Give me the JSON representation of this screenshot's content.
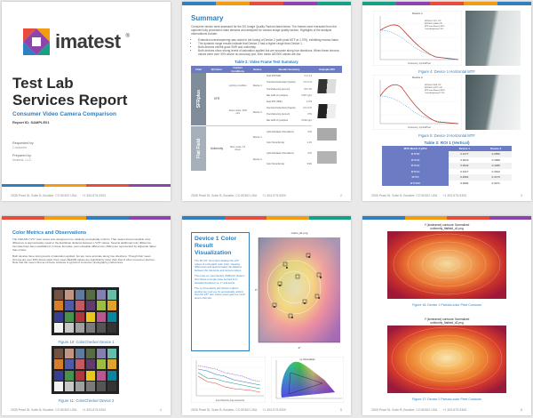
{
  "cover": {
    "logo_text": "imatest",
    "logo_mark": "®",
    "title_line1": "Test Lab",
    "title_line2": "Services Report",
    "subtitle": "Consumer Video Camera Comparison",
    "report_id": "Report ID: SAMPLE01",
    "requested_by_label": "Requested by:",
    "requested_by_value": "Customer",
    "prepared_by_label": "Prepared by:",
    "prepared_by_value": "Imatest, LLC"
  },
  "footer": {
    "address": "2535 Pearl St, Suite B, Boulder, CO 80302 USA",
    "phone": "+1 303-579-9300",
    "web": "www.imatest.com",
    "page_numbers": [
      "",
      "2",
      "3",
      "4",
      "5",
      "6"
    ]
  },
  "summary": {
    "heading": "Summary",
    "intro": "Consumer device were assessed for the EO Image Quality Factors listed below. The frames were extracted from the captured fully processed video streams and analyzed for various image quality factors. Highlights of the analysis observations include:",
    "bullets": [
      "Extended oversharpening was noted in the tuning of Device 2 (with peak MTF at 1.379), exhibiting excess halos.",
      "The dynamic range results indicate that Device 2 had a higher range than Device 1.",
      "Both devices exhibit good SNR and uniformity.",
      "Both devices show strong levels of saturation applied but are accurate along hue directions. When these chroma values were over 30% above an accuracy plot, then mean ΔE2000 values are low."
    ],
    "table_title": "Table 2: Video Frame Test Summary",
    "table_headers": [
      "Chart",
      "IQ Factor",
      "Capture Conditions",
      "Device",
      "Results Summary",
      "Example ROI"
    ],
    "group1_label": "SFRplus",
    "group1_factor": "SFR",
    "group1_cond1": "Lighting condition",
    "group1_cond2": "Same scale, SFR plus",
    "group2_label": "Flat Field",
    "group2_factor": "Uniformity",
    "group2_cond1": "Best mode, 1X Zoom",
    "devices": [
      "Device 1",
      "Device 2",
      "Device 1",
      "Device 2"
    ],
    "metric_rows": [
      [
        "Peak MTF/NMF",
        "0.4 / 0.4"
      ],
      [
        "Overshoot/undersharp (Nyquist)",
        "1.0 / 0.14"
      ],
      [
        "Oversharpening (percent)",
        "0% / 2%"
      ],
      [
        "Max width of cycle/pixel",
        "0.307 cy/px"
      ],
      [
        "Peak MTF (NMF)",
        "1.379"
      ],
      [
        "Overshoot/undershoot (Nyquist)",
        "0.9 / 0.27"
      ],
      [
        "Oversharpening (percent)",
        "27%"
      ],
      [
        "Max width of cycle/pixel",
        "0.319 cy/px"
      ]
    ],
    "flat_rows": [
      "Light Modulation (Normalized)",
      "Color Nonuniformity",
      "Light Modulation (Normalized)",
      "Color Nonuniformity"
    ],
    "flat_values": [
      "0.81",
      "1.1%",
      "0.87",
      "0.9%"
    ]
  },
  "mtf_page": {
    "fig1_caption": "Figure 4: Device 1 Horizontal MTF",
    "fig2_caption": "Figure 5: Device 2 Horizontal MTF",
    "table_title": "Table 3: ROI 1 (Vertical)",
    "table_headers": [
      "MTF Metric Cy/Pxl",
      "Device 1",
      "Device 2"
    ],
    "table_rows": [
      [
        "MTF50",
        "0.3177",
        "0.2559"
      ],
      [
        "MTF30",
        "0.3623",
        "0.3068"
      ],
      [
        "MTF20",
        "0.3942",
        "0.3468"
      ],
      [
        "MTF10",
        "0.4317",
        "0.3913"
      ],
      [
        "MTF5",
        "0.4581",
        "0.4173"
      ],
      [
        "MTF50P",
        "0.3684",
        "0.3271"
      ]
    ],
    "legend1": [
      "MTF50 0.3177 C/P",
      "MTF50P 0.3684 C/P",
      "MTF area Norm 0.4511",
      "Oversharpening 2.4%"
    ],
    "legend2": [
      "MTF50 0.2559 C/P",
      "MTF50P 0.3271 C/P",
      "MTF area Norm 0.4937",
      "Oversharpening 27.3%"
    ],
    "chart_xlabel": "Frequency, Cycles/Pixel",
    "chart_title1": "Device 1",
    "chart_title2": "Device 2"
  },
  "color_page": {
    "heading": "Color Metrics and Observations",
    "para1": "The CIELAB L*a*b* color space was designed to be relatively perceptually uniform. That means that perceptible color difference is approximately equal to the Euclidean distance between L*a*b* values. Several additional color difference formulae have been established. In these formulae, just noticeable differences (JNDs) are represented by ellipsoids rather than circles.",
    "para2": "Both devices have strong levels of saturation applied, but are more accurate along hue directions. Though their mean chroma are over 30% above ideal, their mean ΔE2000 values are significantly lower than that of other consumer devices. Note that the mean chroma of these cameras is typical of consumer photography preferences.",
    "fig1_caption": "Figure 10: ColorChecker Device 1",
    "fig2_caption": "Figure 11: ColorChecker Device 2"
  },
  "vis_page": {
    "box_title": "Device 1 Color Result Visualization",
    "box_text1": "The 2D a*b* plot (right) displays the a*b* values of a 24-patch color chart, showing differences and approximately the distance between the reference and camera values.",
    "box_text2": "The noise vs. input density (SNR plot (bottom left) shows a simple noise derived from standard deviation) vs. L* and levels.",
    "box_text3": "The xy chromaticity plot (bottom right) is another key tool you for perceptually uniform than the a*b* plot, where green gets too much area in this plot.",
    "chart_title": "colors_d1.png",
    "chart_xlabel": "a*",
    "chart_ylabel": "b*",
    "bottom_left_xlabel": "Input Density (log exposure)",
    "bottom_right_title": "xy chromaticity"
  },
  "uniformity_page": {
    "top_title1": "Y (luminance) contours: Normalized",
    "top_title2": "uniformity_flatfield_d1.png",
    "fig1_caption": "Figure 16: Device 1 Pseudo-color Pixel Contours",
    "bottom_title1": "Y (luminance) contours: Normalized",
    "bottom_title2": "uniformity_flatfield_d2.png",
    "fig2_caption": "Figure 17: Device 2 Pseudo-color Pixel Contours"
  },
  "colors": {
    "blue": "#2f7fc1",
    "orange": "#f39c12",
    "red": "#e84c3d",
    "purple": "#8e44ad",
    "teal": "#16a085",
    "yellow": "#f1c40f",
    "table_header": "#6b7cc5"
  }
}
